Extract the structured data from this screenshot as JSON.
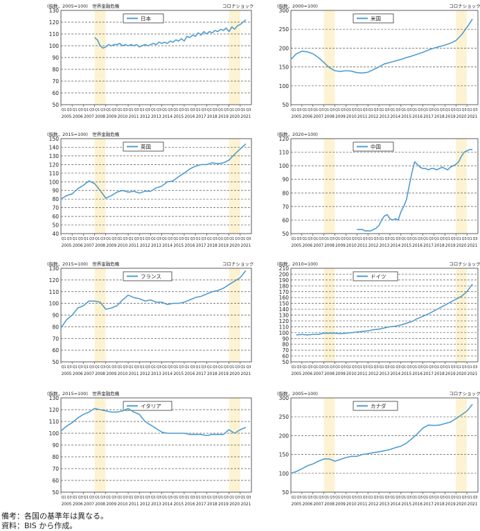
{
  "notes": {
    "line1": "備考：各国の基準年は異なる。",
    "line2": "資料：BIS から作成。"
  },
  "colors": {
    "line": "#4e9cd0",
    "shade": "#fdf3d3",
    "grid": "#555555",
    "axis": "#333333",
    "text": "#222222"
  },
  "chart_data": [
    {
      "type": "line",
      "unit_label": "(指数，2005=100)",
      "legend": "日本",
      "annotation_crisis": "世界金融危機",
      "annotation_corona": "コロナショック",
      "ylim": [
        50,
        130
      ],
      "yticks": [
        50,
        60,
        70,
        80,
        90,
        100,
        110,
        120,
        130
      ],
      "years": [
        "2005",
        "2006",
        "2007",
        "2008",
        "2009",
        "2010",
        "2011",
        "2012",
        "2013",
        "2014",
        "2015",
        "2016",
        "2017",
        "2018",
        "2019",
        "2020",
        "2021"
      ],
      "quarters": [
        "Q1",
        "Q3"
      ],
      "shaded_years": [
        "2008",
        "2020"
      ],
      "x": [
        2008.0,
        2008.25,
        2008.5,
        2008.75,
        2009.0,
        2009.25,
        2009.5,
        2009.75,
        2010.0,
        2010.25,
        2010.5,
        2010.75,
        2011.0,
        2011.25,
        2011.5,
        2011.75,
        2012.0,
        2012.25,
        2012.5,
        2012.75,
        2013.0,
        2013.25,
        2013.5,
        2013.75,
        2014.0,
        2014.25,
        2014.5,
        2014.75,
        2015.0,
        2015.25,
        2015.5,
        2015.75,
        2016.0,
        2016.25,
        2016.5,
        2016.75,
        2017.0,
        2017.25,
        2017.5,
        2017.75,
        2018.0,
        2018.25,
        2018.5,
        2018.75,
        2019.0,
        2019.25,
        2019.5,
        2019.75,
        2020.0,
        2020.25,
        2020.5,
        2020.75,
        2021.0,
        2021.25,
        2021.5
      ],
      "y": [
        107,
        105,
        100,
        98,
        99,
        101,
        100,
        101,
        101,
        102,
        100,
        101,
        100,
        101,
        100,
        101,
        99,
        100,
        101,
        100,
        101,
        102,
        101,
        103,
        102,
        103,
        102,
        104,
        103,
        105,
        104,
        106,
        104,
        108,
        107,
        109,
        108,
        111,
        109,
        112,
        110,
        112,
        111,
        113,
        112,
        114,
        113,
        115,
        112,
        116,
        114,
        117,
        118,
        120,
        122
      ]
    },
    {
      "type": "line",
      "unit_label": "(指数，2000=100)",
      "legend": "米国",
      "annotation_corona": "コロナショック",
      "ylim": [
        50,
        300
      ],
      "yticks": [
        50,
        100,
        150,
        200,
        250,
        300
      ],
      "years": [
        "2005",
        "2006",
        "2007",
        "2008",
        "2009",
        "2010",
        "2011",
        "2012",
        "2013",
        "2014",
        "2015",
        "2016",
        "2017",
        "2018",
        "2019",
        "2020",
        "2021"
      ],
      "quarters": [
        "Q1",
        "Q3"
      ],
      "shaded_years": [
        "2008",
        "2020"
      ],
      "x": [
        2005.0,
        2005.5,
        2006.0,
        2006.5,
        2007.0,
        2007.5,
        2008.0,
        2008.5,
        2009.0,
        2009.5,
        2010.0,
        2010.5,
        2011.0,
        2011.5,
        2012.0,
        2012.5,
        2013.0,
        2013.5,
        2014.0,
        2014.5,
        2015.0,
        2015.5,
        2016.0,
        2016.5,
        2017.0,
        2017.5,
        2018.0,
        2018.5,
        2019.0,
        2019.5,
        2020.0,
        2020.5,
        2021.0,
        2021.5
      ],
      "y": [
        170,
        185,
        192,
        190,
        185,
        175,
        162,
        148,
        140,
        138,
        140,
        139,
        135,
        134,
        136,
        143,
        150,
        158,
        162,
        166,
        170,
        175,
        179,
        184,
        189,
        195,
        200,
        204,
        208,
        213,
        220,
        235,
        255,
        277
      ]
    },
    {
      "type": "line",
      "unit_label": "(指数，2015=100)",
      "legend": "英国",
      "annotation_crisis": "世界金融危機",
      "ylim": [
        40,
        150
      ],
      "yticks": [
        40,
        50,
        60,
        70,
        80,
        90,
        100,
        110,
        120,
        130,
        140,
        150
      ],
      "years": [
        "2005",
        "2006",
        "2007",
        "2008",
        "2009",
        "2010",
        "2011",
        "2012",
        "2013",
        "2014",
        "2015",
        "2016",
        "2017",
        "2018",
        "2019",
        "2020",
        "2021"
      ],
      "quarters": [
        "Q1",
        "Q3"
      ],
      "shaded_years": [
        "2008",
        "2020"
      ],
      "x": [
        2005.0,
        2005.5,
        2006.0,
        2006.5,
        2007.0,
        2007.5,
        2008.0,
        2008.5,
        2009.0,
        2009.5,
        2010.0,
        2010.5,
        2011.0,
        2011.5,
        2012.0,
        2012.5,
        2013.0,
        2013.5,
        2014.0,
        2014.5,
        2015.0,
        2015.5,
        2016.0,
        2016.5,
        2017.0,
        2017.5,
        2018.0,
        2018.5,
        2019.0,
        2019.5,
        2020.0,
        2020.5,
        2021.0,
        2021.5
      ],
      "y": [
        80,
        84,
        86,
        92,
        96,
        101,
        98,
        90,
        81,
        84,
        88,
        90,
        88,
        89,
        87,
        89,
        89,
        93,
        95,
        100,
        101,
        106,
        110,
        115,
        118,
        120,
        120,
        122,
        121,
        122,
        125,
        132,
        138,
        144
      ]
    },
    {
      "type": "line",
      "unit_label": "(指数，2020=100)",
      "legend": "中国",
      "ylim": [
        50,
        120
      ],
      "yticks": [
        50,
        60,
        70,
        80,
        90,
        100,
        110,
        120
      ],
      "years": [
        "2005",
        "2006",
        "2007",
        "2008",
        "2009",
        "2010",
        "2011",
        "2012",
        "2013",
        "2014",
        "2015",
        "2016",
        "2017",
        "2018",
        "2019",
        "2020",
        "2021"
      ],
      "quarters": [
        "Q1",
        "Q3"
      ],
      "shaded_years": [
        "2008",
        "2020"
      ],
      "x": [
        2011.0,
        2011.25,
        2011.5,
        2011.75,
        2012.0,
        2012.25,
        2012.5,
        2012.75,
        2013.0,
        2013.25,
        2013.5,
        2013.75,
        2014.0,
        2014.25,
        2014.5,
        2014.75,
        2015.0,
        2015.25,
        2015.5,
        2015.75,
        2016.0,
        2016.25,
        2016.5,
        2016.75,
        2017.0,
        2017.25,
        2017.5,
        2017.75,
        2018.0,
        2018.25,
        2018.5,
        2018.75,
        2019.0,
        2019.25,
        2019.5,
        2019.75,
        2020.0,
        2020.25,
        2020.5,
        2020.75,
        2021.0,
        2021.25,
        2021.5
      ],
      "y": [
        53,
        53,
        53,
        52,
        52,
        52,
        53,
        54,
        56,
        60,
        63,
        64,
        61,
        60,
        61,
        60,
        66,
        70,
        75,
        85,
        95,
        103,
        101,
        99,
        98,
        98,
        97,
        98,
        98,
        97,
        98,
        99,
        98,
        97,
        99,
        100,
        101,
        103,
        107,
        110,
        111,
        112,
        112
      ]
    },
    {
      "type": "line",
      "unit_label": "(指数，2015=100)",
      "legend": "フランス",
      "annotation_crisis": "世界金融危機",
      "annotation_corona": "コロナショック",
      "ylim": [
        50,
        130
      ],
      "yticks": [
        50,
        60,
        70,
        80,
        90,
        100,
        110,
        120,
        130
      ],
      "years": [
        "2005",
        "2006",
        "2007",
        "2008",
        "2009",
        "2010",
        "2011",
        "2012",
        "2013",
        "2014",
        "2015",
        "2016",
        "2017",
        "2018",
        "2019",
        "2020",
        "2021"
      ],
      "quarters": [
        "Q1",
        "Q3"
      ],
      "shaded_years": [
        "2008",
        "2020"
      ],
      "x": [
        2005.0,
        2005.5,
        2006.0,
        2006.5,
        2007.0,
        2007.5,
        2008.0,
        2008.5,
        2009.0,
        2009.5,
        2010.0,
        2010.5,
        2011.0,
        2011.5,
        2012.0,
        2012.5,
        2013.0,
        2013.5,
        2014.0,
        2014.5,
        2015.0,
        2015.5,
        2016.0,
        2016.5,
        2017.0,
        2017.5,
        2018.0,
        2018.5,
        2019.0,
        2019.5,
        2020.0,
        2020.5,
        2021.0,
        2021.5
      ],
      "y": [
        79,
        86,
        90,
        96,
        98,
        102,
        102,
        101,
        95,
        96,
        98,
        103,
        107,
        105,
        104,
        102,
        103,
        101,
        101,
        99,
        100,
        100,
        101,
        103,
        105,
        106,
        108,
        110,
        111,
        113,
        116,
        119,
        122,
        128
      ]
    },
    {
      "type": "line",
      "unit_label": "(指数，2010=100)",
      "legend": "ドイツ",
      "annotation_corona": "コロナショック",
      "ylim": [
        50,
        210
      ],
      "yticks": [
        50,
        60,
        70,
        80,
        90,
        100,
        110,
        120,
        130,
        140,
        150,
        160,
        170,
        180,
        190,
        200,
        210
      ],
      "years": [
        "2005",
        "2006",
        "2007",
        "2008",
        "2009",
        "2010",
        "2011",
        "2012",
        "2013",
        "2014",
        "2015",
        "2016",
        "2017",
        "2018",
        "2019",
        "2020",
        "2021"
      ],
      "quarters": [
        "Q1",
        "Q3"
      ],
      "shaded_years": [
        "2008",
        "2020"
      ],
      "x": [
        2005.5,
        2006.0,
        2006.5,
        2007.0,
        2007.5,
        2008.0,
        2008.5,
        2009.0,
        2009.5,
        2010.0,
        2010.5,
        2011.0,
        2011.5,
        2012.0,
        2012.5,
        2013.0,
        2013.5,
        2014.0,
        2014.5,
        2015.0,
        2015.5,
        2016.0,
        2016.5,
        2017.0,
        2017.5,
        2018.0,
        2018.5,
        2019.0,
        2019.5,
        2020.0,
        2020.5,
        2021.0,
        2021.5
      ],
      "y": [
        96,
        97,
        96,
        97,
        97,
        99,
        99,
        99,
        98,
        99,
        100,
        101,
        102,
        103,
        105,
        106,
        108,
        110,
        111,
        113,
        116,
        119,
        124,
        128,
        132,
        137,
        142,
        147,
        152,
        157,
        162,
        170,
        183
      ]
    },
    {
      "type": "line",
      "unit_label": "(指数，2015=100)",
      "legend": "イタリア",
      "annotation_crisis": "世界金融危機",
      "ylim": [
        50,
        130
      ],
      "yticks": [
        50,
        60,
        70,
        80,
        90,
        100,
        110,
        120,
        130
      ],
      "years": [
        "2005",
        "2006",
        "2007",
        "2008",
        "2009",
        "2010",
        "2011",
        "2012",
        "2013",
        "2014",
        "2015",
        "2016",
        "2017",
        "2018",
        "2019",
        "2020",
        "2021"
      ],
      "quarters": [
        "Q1",
        "Q3"
      ],
      "shaded_years": [
        "2008",
        "2020"
      ],
      "x": [
        2005.0,
        2005.5,
        2006.0,
        2006.5,
        2007.0,
        2007.5,
        2008.0,
        2008.5,
        2009.0,
        2009.5,
        2010.0,
        2010.5,
        2011.0,
        2011.5,
        2012.0,
        2012.5,
        2013.0,
        2013.5,
        2014.0,
        2014.5,
        2015.0,
        2015.5,
        2016.0,
        2016.5,
        2017.0,
        2017.5,
        2018.0,
        2018.5,
        2019.0,
        2019.5,
        2020.0,
        2020.5,
        2021.0,
        2021.5
      ],
      "y": [
        102,
        106,
        109,
        113,
        116,
        118,
        121,
        120,
        119,
        118,
        118,
        119,
        121,
        118,
        116,
        110,
        107,
        104,
        101,
        100,
        100,
        100,
        100,
        99,
        99,
        99,
        98,
        99,
        99,
        99,
        103,
        100,
        103,
        105
      ]
    },
    {
      "type": "line",
      "unit_label": "(指数，2005=100)",
      "legend": "カナダ",
      "annotation_corona": "コロナショック",
      "ylim": [
        50,
        300
      ],
      "yticks": [
        50,
        100,
        150,
        200,
        250,
        300
      ],
      "years": [
        "2005",
        "2006",
        "2007",
        "2008",
        "2009",
        "2010",
        "2011",
        "2012",
        "2013",
        "2014",
        "2015",
        "2016",
        "2017",
        "2018",
        "2019",
        "2020",
        "2021"
      ],
      "quarters": [
        "Q1",
        "Q3"
      ],
      "shaded_years": [
        "2008",
        "2020"
      ],
      "x": [
        2005.0,
        2005.5,
        2006.0,
        2006.5,
        2007.0,
        2007.5,
        2008.0,
        2008.5,
        2009.0,
        2009.5,
        2010.0,
        2010.5,
        2011.0,
        2011.5,
        2012.0,
        2012.5,
        2013.0,
        2013.5,
        2014.0,
        2014.5,
        2015.0,
        2015.5,
        2016.0,
        2016.5,
        2017.0,
        2017.5,
        2018.0,
        2018.5,
        2019.0,
        2019.5,
        2020.0,
        2020.5,
        2021.0,
        2021.5
      ],
      "y": [
        100,
        105,
        112,
        120,
        125,
        132,
        138,
        138,
        132,
        137,
        142,
        145,
        145,
        150,
        152,
        155,
        157,
        160,
        163,
        168,
        172,
        180,
        192,
        205,
        220,
        228,
        227,
        228,
        232,
        236,
        245,
        255,
        265,
        283
      ]
    }
  ]
}
